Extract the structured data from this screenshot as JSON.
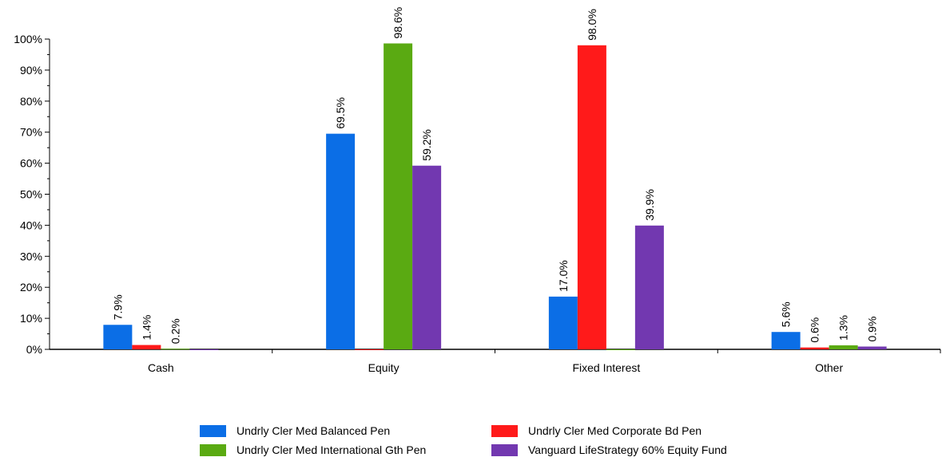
{
  "chart_data": {
    "type": "bar",
    "categories": [
      "Cash",
      "Equity",
      "Fixed Interest",
      "Other"
    ],
    "series": [
      {
        "name": "Undrly Cler Med Balanced Pen",
        "color": "#0b6ee6",
        "values": [
          7.9,
          69.5,
          17.0,
          5.6
        ],
        "labels": [
          "7.9%",
          "69.5%",
          "17.0%",
          "5.6%"
        ]
      },
      {
        "name": "Undrly Cler Med Corporate Bd Pen",
        "color": "#ff1a1a",
        "values": [
          1.4,
          0.0,
          98.0,
          0.6
        ],
        "labels": [
          "1.4%",
          "",
          "98.0%",
          "0.6%"
        ]
      },
      {
        "name": "Undrly Cler Med International Gth Pen",
        "color": "#5aaa12",
        "values": [
          0.2,
          98.6,
          0.0,
          1.3
        ],
        "labels": [
          "0.2%",
          "98.6%",
          "",
          "1.3%"
        ]
      },
      {
        "name": "Vanguard LifeStrategy 60% Equity Fund",
        "color": "#7238b0",
        "values": [
          0.0,
          59.2,
          39.9,
          0.9
        ],
        "labels": [
          "",
          "59.2%",
          "39.9%",
          "0.9%"
        ]
      }
    ],
    "yticks": [
      "0%",
      "10%",
      "20%",
      "30%",
      "40%",
      "50%",
      "60%",
      "70%",
      "80%",
      "90%",
      "100%"
    ],
    "ylim": [
      0,
      100
    ],
    "grid": false,
    "legend_position": "bottom"
  }
}
